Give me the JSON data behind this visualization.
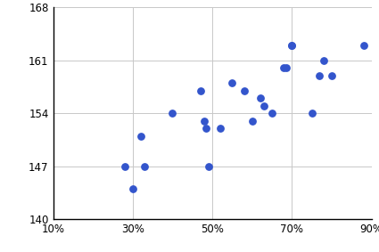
{
  "x_values": [
    0.28,
    0.3,
    0.32,
    0.33,
    0.4,
    0.47,
    0.48,
    0.485,
    0.49,
    0.52,
    0.55,
    0.58,
    0.6,
    0.62,
    0.63,
    0.65,
    0.68,
    0.685,
    0.7,
    0.7,
    0.75,
    0.77,
    0.78,
    0.8,
    0.88
  ],
  "y_values": [
    147,
    144,
    151,
    147,
    154,
    157,
    153,
    152,
    147,
    152,
    158,
    157,
    153,
    156,
    155,
    154,
    160,
    160,
    163,
    163,
    154,
    159,
    161,
    159,
    163
  ],
  "dot_color": "#3355cc",
  "dot_size": 28,
  "xlim": [
    0.1,
    0.9
  ],
  "ylim": [
    140,
    168
  ],
  "xticks": [
    0.1,
    0.3,
    0.5,
    0.7,
    0.9
  ],
  "yticks": [
    140,
    147,
    154,
    161,
    168
  ],
  "xtick_labels": [
    "10%",
    "30%",
    "50%",
    "70%",
    "90%"
  ],
  "ytick_labels": [
    "140",
    "147",
    "154",
    "161",
    "168"
  ],
  "grid_color": "#c8c8c8",
  "background_color": "#ffffff",
  "tick_fontsize": 8.5,
  "spine_color": "#000000"
}
